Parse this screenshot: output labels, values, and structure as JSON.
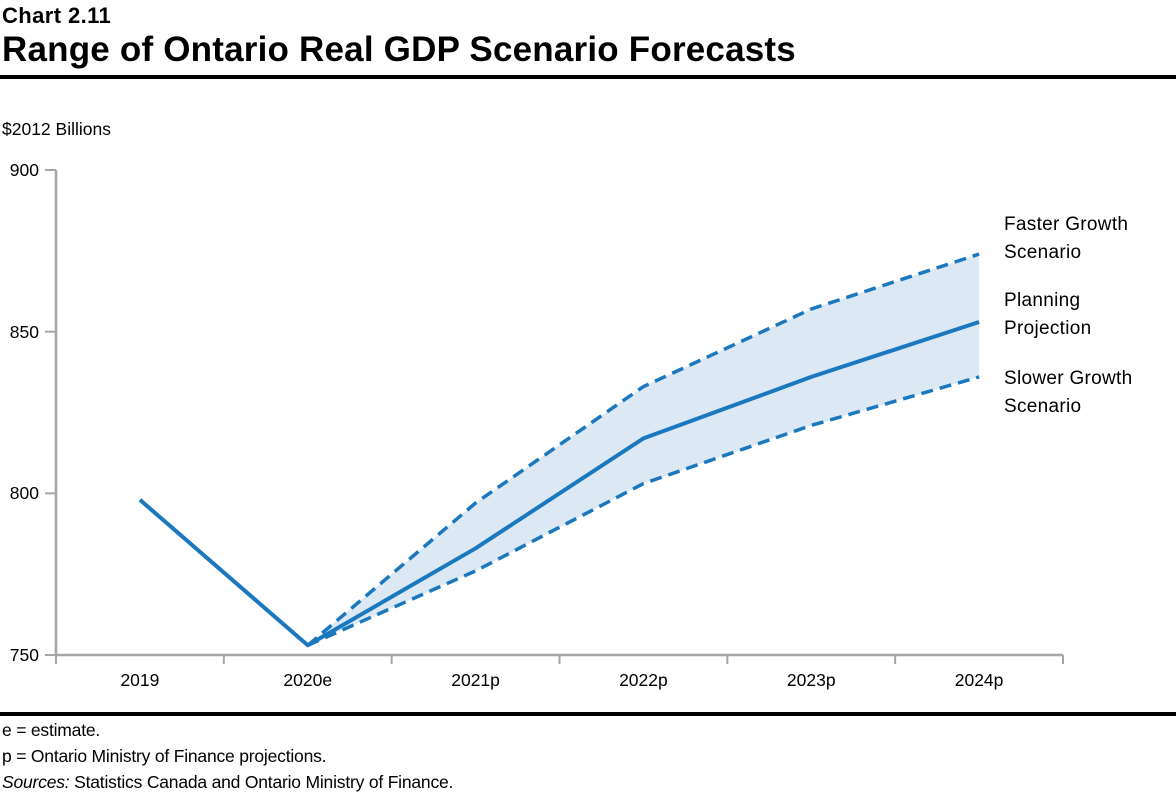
{
  "header": {
    "chart_number": "Chart 2.11",
    "title": "Range of Ontario Real GDP Scenario Forecasts"
  },
  "unit_label": "$2012 Billions",
  "chart_data": {
    "type": "line",
    "title": "Range of Ontario Real GDP Scenario Forecasts",
    "ylabel": "$2012 Billions",
    "categories": [
      "2019",
      "2020e",
      "2021p",
      "2022p",
      "2023p",
      "2024p"
    ],
    "ylim": [
      750,
      900
    ],
    "yticks": [
      750,
      800,
      850,
      900
    ],
    "grid": false,
    "legend_position": "right-annotations",
    "series": [
      {
        "name": "Faster Growth Scenario",
        "line_style": "dashed",
        "values": [
          null,
          753,
          797,
          833,
          857,
          874
        ]
      },
      {
        "name": "Slower Growth Scenario",
        "line_style": "dashed",
        "values": [
          null,
          753,
          776,
          803,
          821,
          836
        ]
      },
      {
        "name": "Planning Projection",
        "line_style": "solid",
        "values": [
          798,
          753,
          783,
          817,
          836,
          853
        ]
      }
    ],
    "band": {
      "between": [
        "Faster Growth Scenario",
        "Slower Growth Scenario"
      ],
      "fill": "#DCE9F5"
    }
  },
  "annotations": [
    {
      "line1": "Faster Growth",
      "line2": "Scenario"
    },
    {
      "line1": "Planning",
      "line2": "Projection"
    },
    {
      "line1": "Slower Growth",
      "line2": "Scenario"
    }
  ],
  "colors": {
    "line": "#1B78BE",
    "band_fill": "#DCE9F5",
    "axis": "#A6A6A6",
    "text": "#000000"
  },
  "footnotes": {
    "line1": "e = estimate.",
    "line2": "p = Ontario Ministry of Finance projections.",
    "sources_label": "Sources:",
    "sources_text": "Statistics Canada and Ontario Ministry of Finance."
  }
}
